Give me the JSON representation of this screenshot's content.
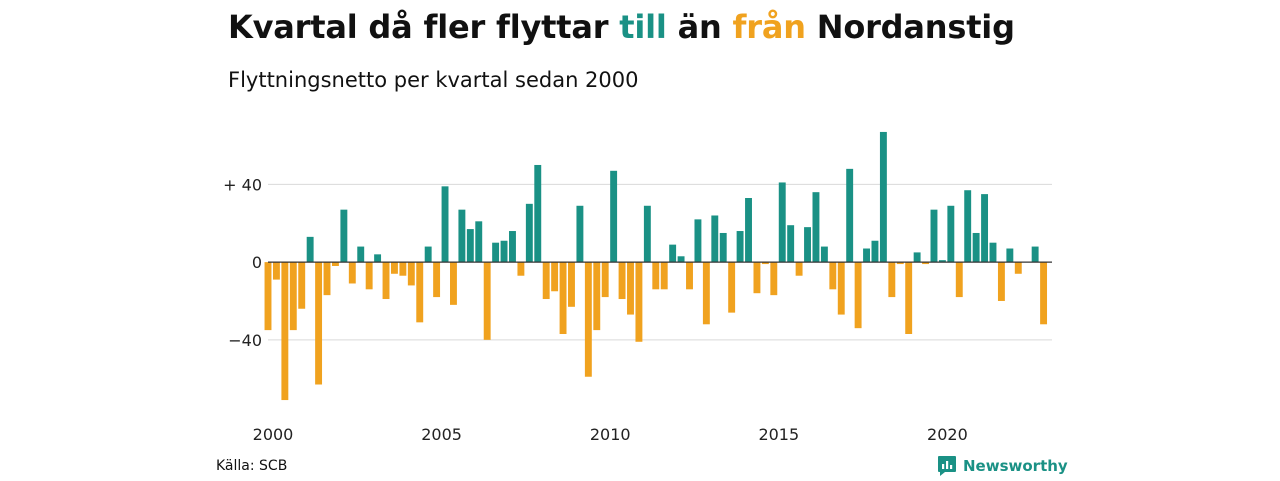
{
  "header": {
    "title_parts": [
      "Kvartal då fler flyttar ",
      "till",
      " än ",
      "från",
      " Nordanstig"
    ],
    "subtitle": "Flyttningsnetto per kvartal sedan 2000"
  },
  "footer": {
    "source": "Källa: SCB",
    "brand": "Newsworthy",
    "brand_icon": "bar-chart-logo-icon"
  },
  "colors": {
    "positive": "#1a9185",
    "negative": "#f0a21f",
    "grid": "#d9d9d9",
    "zero_line": "#333333"
  },
  "chart_data": {
    "type": "bar",
    "title": "Kvartal då fler flyttar till än från Nordanstig",
    "subtitle": "Flyttningsnetto per kvartal sedan 2000",
    "x_start": 2000.0,
    "x_step": 0.25,
    "xlim": [
      2000.0,
      2023.25
    ],
    "ylim": [
      -72,
      68
    ],
    "y_ticks": [
      {
        "value": 40,
        "label": "+ 40"
      },
      {
        "value": 0,
        "label": "0"
      },
      {
        "value": -40,
        "label": "−40"
      }
    ],
    "x_ticks": [
      2000,
      2005,
      2010,
      2015,
      2020
    ],
    "grid": true,
    "values": [
      -35,
      -9,
      -71,
      -35,
      -24,
      13,
      -63,
      -17,
      -2,
      27,
      -11,
      8,
      -14,
      4,
      -19,
      -6,
      -7,
      -12,
      -31,
      8,
      -18,
      39,
      -22,
      27,
      17,
      21,
      -40,
      10,
      11,
      16,
      -7,
      30,
      50,
      -19,
      -15,
      -37,
      -23,
      29,
      -59,
      -35,
      -18,
      47,
      -19,
      -27,
      -41,
      29,
      -14,
      -14,
      9,
      3,
      -14,
      22,
      -32,
      24,
      15,
      -26,
      16,
      33,
      -16,
      -1,
      -17,
      41,
      19,
      -7,
      18,
      36,
      8,
      -14,
      -27,
      48,
      -34,
      7,
      11,
      67,
      -18,
      -1,
      -37,
      5,
      -1,
      27,
      1,
      29,
      -18,
      37,
      15,
      35,
      10,
      -20,
      7,
      -6,
      0,
      8,
      -32
    ]
  }
}
